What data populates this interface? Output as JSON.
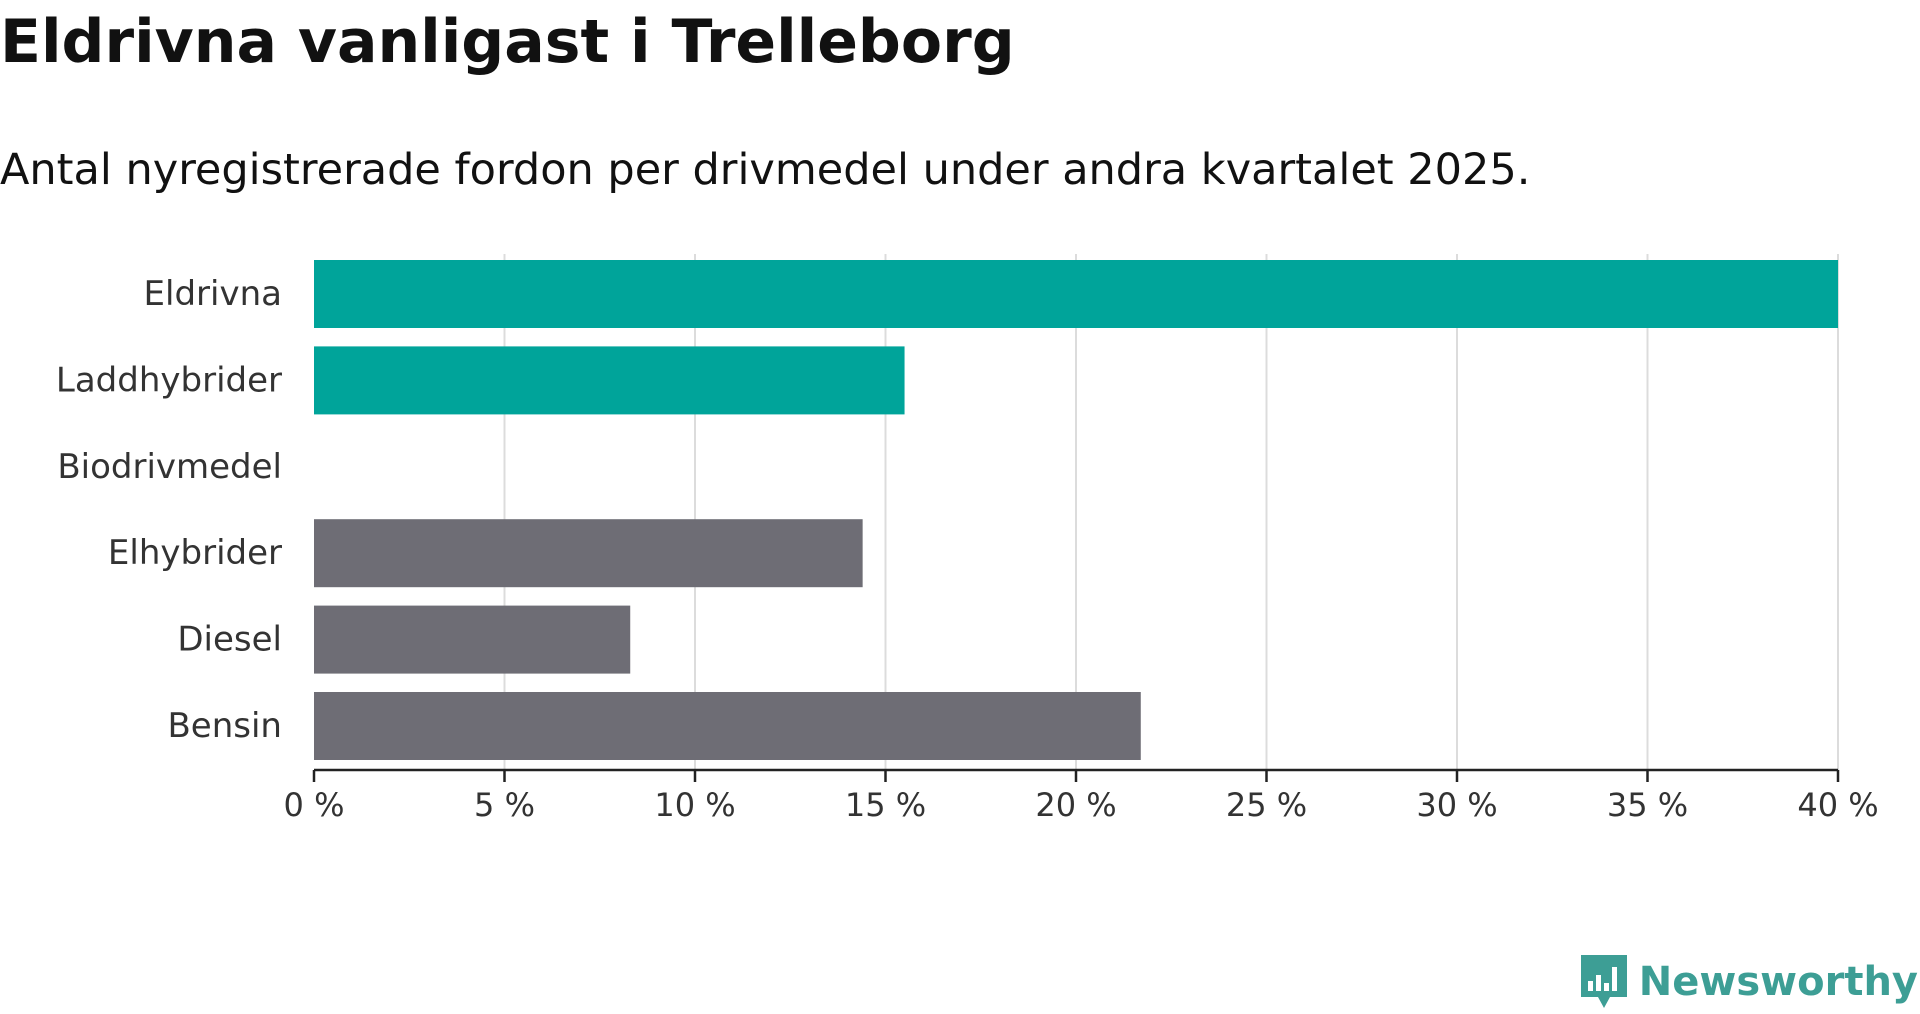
{
  "brand": {
    "name": "Newsworthy",
    "icon": "bar-chart-speech-bubble-icon",
    "color": "#3d9e95"
  },
  "chart_data": {
    "type": "bar",
    "orientation": "horizontal",
    "title": "Eldrivna vanligast i Trelleborg",
    "subtitle": "Antal nyregistrerade fordon per drivmedel under andra kvartalet 2025.",
    "categories": [
      "Eldrivna",
      "Laddhybrider",
      "Biodrivmedel",
      "Elhybrider",
      "Diesel",
      "Bensin"
    ],
    "values": [
      40.0,
      15.5,
      0,
      14.4,
      8.3,
      21.7
    ],
    "unit": "%",
    "bar_colors": [
      "#00a49a",
      "#00a49a",
      "#00a49a",
      "#6e6d75",
      "#6e6d75",
      "#6e6d75"
    ],
    "xlim": [
      0,
      40
    ],
    "x_ticks": [
      0,
      5,
      10,
      15,
      20,
      25,
      30,
      35,
      40
    ],
    "x_tick_labels": [
      "0 %",
      "5 %",
      "10 %",
      "15 %",
      "20 %",
      "25 %",
      "30 %",
      "35 %",
      "40 %"
    ],
    "xlabel": "",
    "ylabel": "",
    "grid": "vertical",
    "legend": "none"
  }
}
